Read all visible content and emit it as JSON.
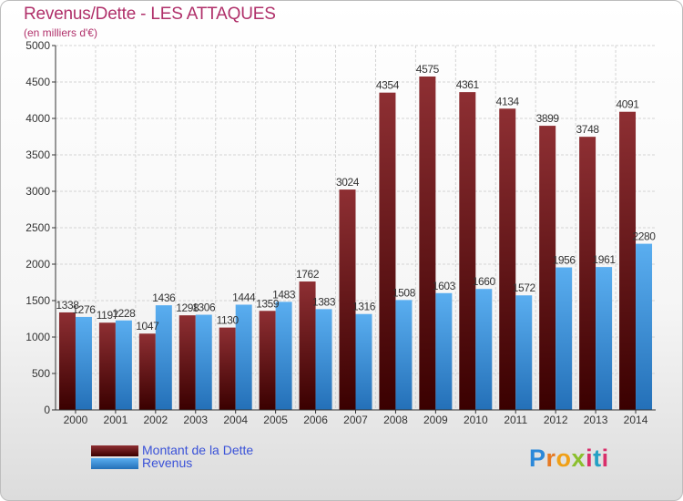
{
  "header": {
    "title": "Revenus/Dette - LES ATTAQUES",
    "subtitle": "(en milliers d'€)"
  },
  "legend": {
    "items": [
      {
        "label": "Montant de la Dette"
      },
      {
        "label": "Revenus"
      }
    ]
  },
  "logo": {
    "text": "Proxiti"
  },
  "colors": {
    "debt_top": "#8e2f33",
    "debt_bottom": "#3a0000",
    "revenue_top": "#5aaef0",
    "revenue_bottom": "#2470b8",
    "title": "#b0306a",
    "legend_text": "#3a52d8"
  },
  "chart_data": {
    "type": "bar",
    "categories": [
      "2000",
      "2001",
      "2002",
      "2003",
      "2004",
      "2005",
      "2006",
      "2007",
      "2008",
      "2009",
      "2010",
      "2011",
      "2012",
      "2013",
      "2014"
    ],
    "series": [
      {
        "name": "Montant de la Dette",
        "values": [
          1338,
          1197,
          1047,
          1298,
          1130,
          1359,
          1762,
          3024,
          4354,
          4575,
          4361,
          4134,
          3899,
          3748,
          4091
        ]
      },
      {
        "name": "Revenus",
        "values": [
          1276,
          1228,
          1436,
          1306,
          1444,
          1483,
          1383,
          1316,
          1508,
          1603,
          1660,
          1572,
          1956,
          1961,
          2280
        ]
      }
    ],
    "yticks": [
      0,
      500,
      1000,
      1500,
      2000,
      2500,
      3000,
      3500,
      4000,
      4500,
      5000
    ],
    "ylim": [
      0,
      5000
    ],
    "grid": true,
    "legend_position": "bottom-left"
  }
}
